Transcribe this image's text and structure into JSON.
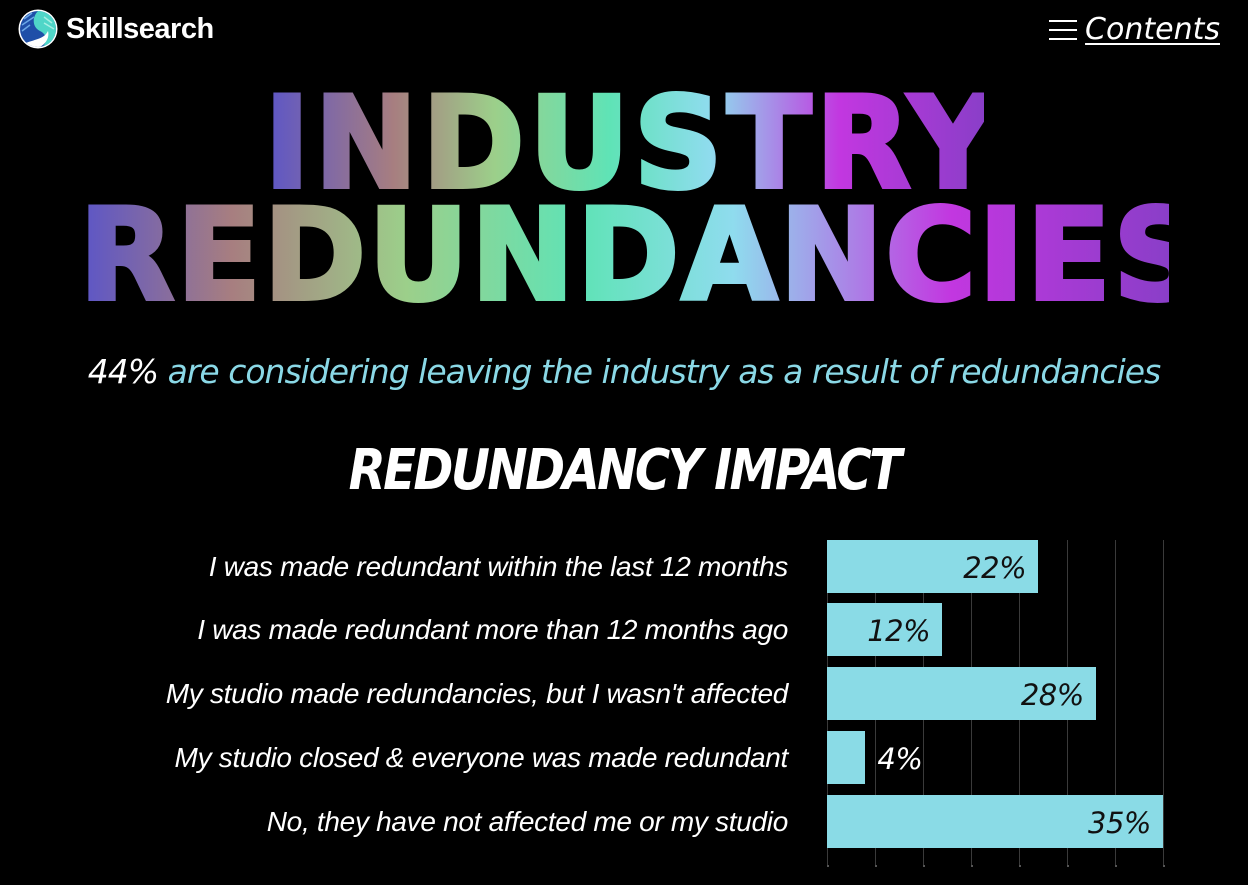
{
  "header": {
    "brand": "Skillsearch",
    "logo_icon": "skillsearch-globe-logo",
    "menu_icon": "hamburger-menu-icon",
    "contents_label": "Contents"
  },
  "hero": {
    "title_line1": "INDUSTRY",
    "title_line2": "REDUNDANCIES",
    "gradient_colors": [
      "#5b55c8",
      "#a77e80",
      "#9ccf8a",
      "#5fe3b6",
      "#8fdcee",
      "#c237e0",
      "#8a3ec8"
    ],
    "subtitle_highlight": "44%",
    "subtitle_rest": " are considering leaving the industry as a result of redundancies",
    "subtitle_highlight_color": "#ffffff",
    "subtitle_color": "#8ad8e6"
  },
  "section": {
    "title": "REDUNDANCY IMPACT"
  },
  "chart_data": {
    "type": "bar",
    "orientation": "horizontal",
    "title": "REDUNDANCY IMPACT",
    "categories": [
      "I was made redundant within the last 12 months",
      "I was made redundant more than 12 months ago",
      "My studio made redundancies, but I wasn't affected",
      "My studio closed & everyone was made redundant",
      "No, they have not affected me or my studio"
    ],
    "values": [
      22,
      12,
      28,
      4,
      35
    ],
    "value_labels": [
      "22%",
      "12%",
      "28%",
      "4%",
      "35%"
    ],
    "xlabel": "",
    "ylabel": "",
    "xlim": [
      0,
      35
    ],
    "grid_step": 5,
    "grid": true,
    "legend": null,
    "bar_color": "#8adbe6"
  }
}
